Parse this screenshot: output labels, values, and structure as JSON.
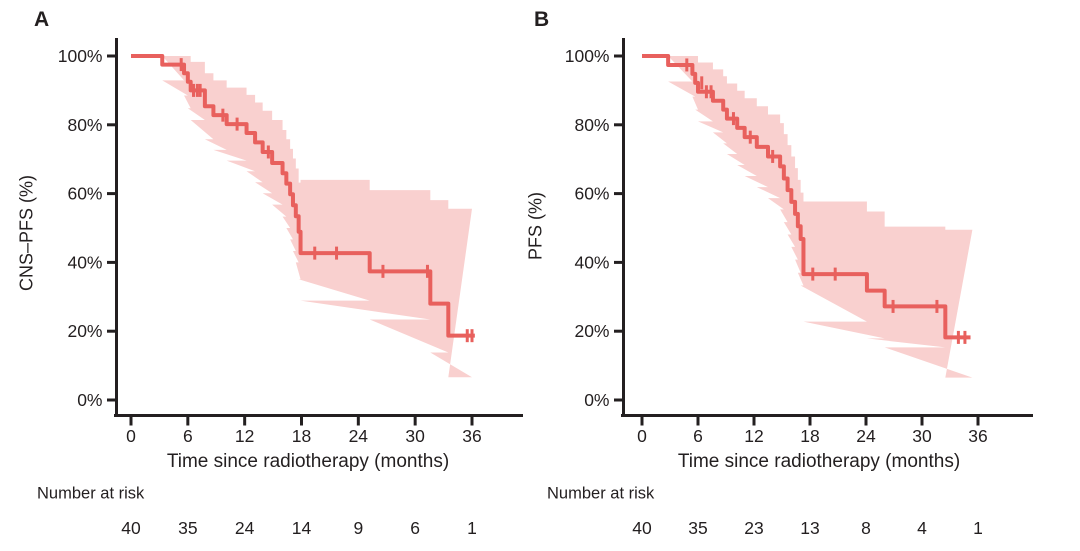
{
  "page": {
    "background": "#ffffff",
    "text_color": "#231f20"
  },
  "chart_data": [
    {
      "type": "line",
      "subtype": "kaplan-meier-step-curve-with-ci-band",
      "panel_label": "A",
      "ylabel": "CNS–PFS (%)",
      "xlabel": "Time since radiotherapy (months)",
      "xticks": [
        0,
        6,
        12,
        18,
        24,
        30,
        36
      ],
      "yticks": [
        "100%",
        "80%",
        "60%",
        "40%",
        "20%",
        "0%"
      ],
      "ytick_values": [
        100,
        80,
        60,
        40,
        20,
        0
      ],
      "ylim": [
        0,
        100
      ],
      "xlim": [
        0,
        41
      ],
      "grid": false,
      "legend": "none",
      "curve_color": "#e8605d",
      "band_color": "#f9d0cf",
      "axis_color": "#231f20",
      "risk_label": "Number at risk",
      "risk_times": [
        0,
        6,
        12,
        18,
        24,
        30,
        36
      ],
      "risk_counts": [
        40,
        35,
        24,
        14,
        9,
        6,
        1
      ],
      "end_t": 36.3,
      "band_end_t": 36.0,
      "steps": [
        [
          0.0,
          100.0,
          100.0,
          100.0
        ],
        [
          3.3,
          97.5,
          92.9,
          100.0
        ],
        [
          5.6,
          95.0,
          88.5,
          100.0
        ],
        [
          6.0,
          92.5,
          84.8,
          100.0
        ],
        [
          6.3,
          90.0,
          81.4,
          98.3
        ],
        [
          7.8,
          85.4,
          75.8,
          95.0
        ],
        [
          8.7,
          82.8,
          72.7,
          92.9
        ],
        [
          10.1,
          80.2,
          69.6,
          90.8
        ],
        [
          12.2,
          77.6,
          66.5,
          88.7
        ],
        [
          13.1,
          74.9,
          63.3,
          86.5
        ],
        [
          13.9,
          72.1,
          60.1,
          84.1
        ],
        [
          14.9,
          68.9,
          56.8,
          81.4
        ],
        [
          16.0,
          65.9,
          53.3,
          78.5
        ],
        [
          16.4,
          62.9,
          50.0,
          75.8
        ],
        [
          16.8,
          59.8,
          46.7,
          73.0
        ],
        [
          17.1,
          56.6,
          43.3,
          70.2
        ],
        [
          17.4,
          53.4,
          40.0,
          67.3
        ],
        [
          17.7,
          48.9,
          35.1,
          63.2
        ],
        [
          17.9,
          42.7,
          28.9,
          64.0
        ],
        [
          25.2,
          37.4,
          23.4,
          61.0
        ],
        [
          31.6,
          28.0,
          13.8,
          58.1
        ],
        [
          33.5,
          18.7,
          6.6,
          55.6
        ]
      ],
      "censors": [
        [
          5.3,
          97.5
        ],
        [
          6.6,
          90.0
        ],
        [
          7.0,
          90.0
        ],
        [
          7.3,
          90.0
        ],
        [
          9.7,
          82.8
        ],
        [
          11.2,
          80.2
        ],
        [
          14.5,
          72.1
        ],
        [
          19.4,
          42.7
        ],
        [
          21.7,
          42.7
        ],
        [
          26.6,
          37.4
        ],
        [
          31.3,
          37.4
        ],
        [
          35.5,
          18.7
        ],
        [
          36.0,
          18.7
        ]
      ]
    },
    {
      "type": "line",
      "subtype": "kaplan-meier-step-curve-with-ci-band",
      "panel_label": "B",
      "ylabel": "PFS (%)",
      "xlabel": "Time since radiotherapy (months)",
      "xticks": [
        0,
        6,
        12,
        18,
        24,
        30,
        36
      ],
      "yticks": [
        "100%",
        "80%",
        "60%",
        "40%",
        "20%",
        "0%"
      ],
      "ytick_values": [
        100,
        80,
        60,
        40,
        20,
        0
      ],
      "ylim": [
        0,
        100
      ],
      "xlim": [
        0,
        41
      ],
      "grid": false,
      "legend": "none",
      "curve_color": "#e8605d",
      "band_color": "#f9d0cf",
      "axis_color": "#231f20",
      "risk_label": "Number at risk",
      "risk_times": [
        0,
        6,
        12,
        18,
        24,
        30,
        36
      ],
      "risk_counts": [
        40,
        35,
        23,
        13,
        8,
        4,
        1
      ],
      "end_t": 35.2,
      "band_end_t": 35.4,
      "steps": [
        [
          0.0,
          100.0,
          100.0,
          100.0
        ],
        [
          2.8,
          97.4,
          92.6,
          100.0
        ],
        [
          5.4,
          94.8,
          88.2,
          100.0
        ],
        [
          5.7,
          92.2,
          84.4,
          100.0
        ],
        [
          6.0,
          89.6,
          81.0,
          98.1
        ],
        [
          7.6,
          87.0,
          77.8,
          96.1
        ],
        [
          8.7,
          84.4,
          74.6,
          94.1
        ],
        [
          9.1,
          81.8,
          71.5,
          92.0
        ],
        [
          10.2,
          79.1,
          68.3,
          89.9
        ],
        [
          11.0,
          76.4,
          65.1,
          87.7
        ],
        [
          12.3,
          73.6,
          61.9,
          85.4
        ],
        [
          13.5,
          70.8,
          58.7,
          83.0
        ],
        [
          14.8,
          67.9,
          55.4,
          80.5
        ],
        [
          15.2,
          64.4,
          51.7,
          77.3
        ],
        [
          15.6,
          61.0,
          48.1,
          74.1
        ],
        [
          16.0,
          57.6,
          44.5,
          70.8
        ],
        [
          16.4,
          54.1,
          40.8,
          67.4
        ],
        [
          16.7,
          50.5,
          37.0,
          64.0
        ],
        [
          17.0,
          46.8,
          33.3,
          60.3
        ],
        [
          17.3,
          36.6,
          22.8,
          57.7
        ],
        [
          24.1,
          31.8,
          17.9,
          54.8
        ],
        [
          26.0,
          27.2,
          15.3,
          50.4
        ],
        [
          32.5,
          18.2,
          6.5,
          49.5
        ]
      ],
      "censors": [
        [
          4.8,
          97.4
        ],
        [
          6.4,
          92.2
        ],
        [
          6.9,
          89.6
        ],
        [
          7.4,
          89.6
        ],
        [
          9.8,
          81.8
        ],
        [
          11.6,
          76.4
        ],
        [
          14.0,
          70.8
        ],
        [
          18.3,
          36.6
        ],
        [
          20.7,
          36.6
        ],
        [
          26.9,
          27.2
        ],
        [
          31.6,
          27.2
        ],
        [
          33.9,
          18.2
        ],
        [
          34.6,
          18.2
        ]
      ]
    }
  ]
}
